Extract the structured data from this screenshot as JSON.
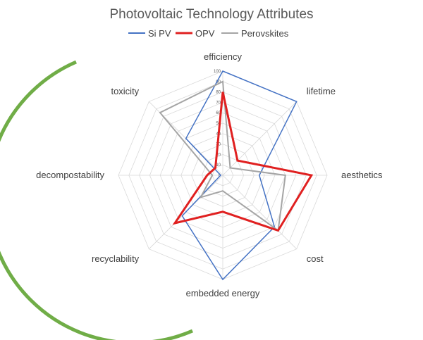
{
  "chart_data": {
    "type": "radar",
    "title": "Photovoltaic Technology Attributes",
    "axes": [
      "efficiency",
      "lifetime",
      "aesthetics",
      "cost",
      "embedded energy",
      "recyclability",
      "decompostability",
      "toxicity"
    ],
    "rlim": [
      0,
      100
    ],
    "ticks": [
      "0",
      "10",
      "20",
      "30",
      "40",
      "50",
      "60",
      "70",
      "80",
      "90",
      "100"
    ],
    "legend_position": "top",
    "series": [
      {
        "name": "Si PV",
        "color": "#4472c4",
        "stroke_width": 1.5,
        "values": [
          100,
          100,
          35,
          70,
          100,
          55,
          2,
          50
        ]
      },
      {
        "name": "OPV",
        "color": "#e02020",
        "stroke_width": 3,
        "values": [
          80,
          20,
          85,
          75,
          35,
          65,
          15,
          10
        ]
      },
      {
        "name": "Perovskites",
        "color": "#a5a5a5",
        "stroke_width": 2,
        "values": [
          90,
          10,
          60,
          75,
          15,
          30,
          10,
          85
        ]
      }
    ],
    "decoration": {
      "arc_color": "#70ad47"
    }
  }
}
